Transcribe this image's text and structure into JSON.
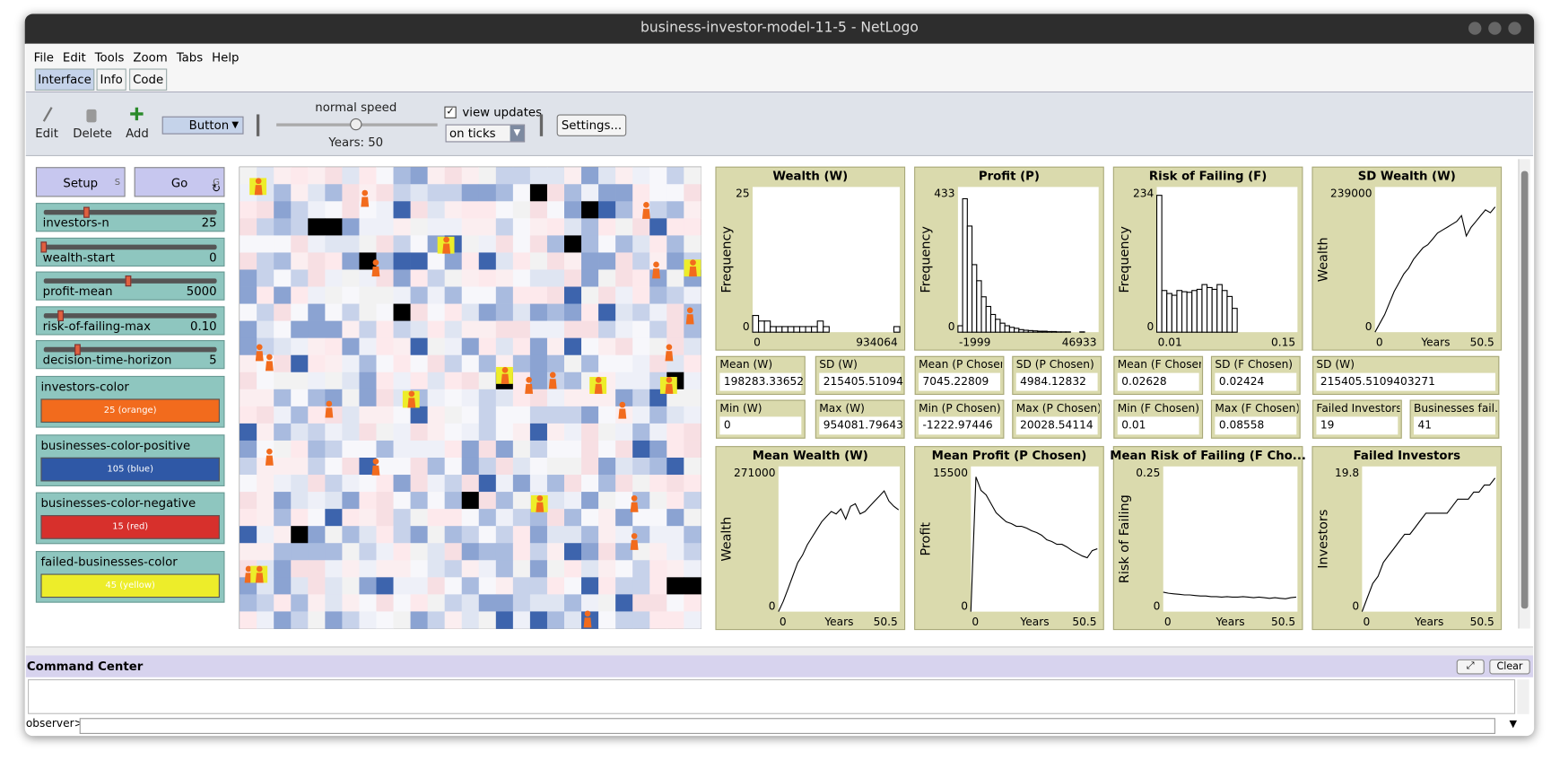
{
  "window": {
    "title": "business-investor-model-11-5 - NetLogo"
  },
  "menu": [
    "File",
    "Edit",
    "Tools",
    "Zoom",
    "Tabs",
    "Help"
  ],
  "tabs": [
    "Interface",
    "Info",
    "Code"
  ],
  "toolbar": {
    "edit": "Edit",
    "delete": "Delete",
    "add": "Add",
    "widget_type": "Button",
    "speed_label": "normal speed",
    "ticks_label": "Years: 50",
    "view_updates": "view updates",
    "update_mode": "on ticks",
    "settings": "Settings..."
  },
  "buttons": [
    {
      "label": "Setup",
      "key": "S"
    },
    {
      "label": "Go",
      "key": "G"
    }
  ],
  "sliders": [
    {
      "name": "investors-n",
      "value": "25"
    },
    {
      "name": "wealth-start",
      "value": "0"
    },
    {
      "name": "profit-mean",
      "value": "5000"
    },
    {
      "name": "risk-of-failing-max",
      "value": "0.10"
    },
    {
      "name": "decision-time-horizon",
      "value": "5"
    }
  ],
  "choosers": [
    {
      "name": "investors-color",
      "value": "25 (orange)",
      "color": "#f26b1d"
    },
    {
      "name": "businesses-color-positive",
      "value": "105 (blue)",
      "color": "#2f58a6"
    },
    {
      "name": "businesses-color-negative",
      "value": "15 (red)",
      "color": "#d7302c"
    },
    {
      "name": "failed-businesses-color",
      "value": "45 (yellow)",
      "color": "#eded2a"
    }
  ],
  "monitors": [
    {
      "label": "Mean (W)",
      "value": "198283.33652"
    },
    {
      "label": "SD (W)",
      "value": "215405.51094"
    },
    {
      "label": "Mean (P Chosen)",
      "value": "7045.22809"
    },
    {
      "label": "SD (P Chosen)",
      "value": "4984.12832"
    },
    {
      "label": "Mean (F Chosen)",
      "value": "0.02628"
    },
    {
      "label": "SD (F Chosen)",
      "value": "0.02424"
    },
    {
      "label": "SD (W)",
      "value": "215405.5109403271"
    },
    {
      "label": "Min (W)",
      "value": "0"
    },
    {
      "label": "Max (W)",
      "value": "954081.79643"
    },
    {
      "label": "Min (P Chosen)",
      "value": "-1222.97446"
    },
    {
      "label": "Max (P Chosen)",
      "value": "20028.54114"
    },
    {
      "label": "Min (F Chosen)",
      "value": "0.01"
    },
    {
      "label": "Max (F Chosen)",
      "value": "0.08558"
    },
    {
      "label": "Failed Investors",
      "value": "19"
    },
    {
      "label": "Businesses fail...",
      "value": "41"
    }
  ],
  "plots": [
    {
      "type": "histogram",
      "title": "Wealth (W)",
      "y_label": "Frequency",
      "xlim": [
        0,
        934064
      ],
      "ylim": [
        0,
        25
      ],
      "values": [
        3,
        2,
        2,
        1,
        1,
        1,
        1,
        1,
        1,
        1,
        1,
        2,
        1,
        0,
        0,
        0,
        0,
        0,
        0,
        0,
        0,
        0,
        0,
        0,
        1
      ]
    },
    {
      "type": "histogram",
      "title": "Profit (P)",
      "y_label": "Frequency",
      "xlim": [
        -1999,
        46933
      ],
      "ylim": [
        0,
        433
      ],
      "values": [
        20,
        415,
        330,
        210,
        160,
        110,
        80,
        55,
        40,
        28,
        20,
        15,
        12,
        8,
        6,
        5,
        4,
        3,
        3,
        2,
        2,
        1,
        1,
        1,
        0,
        0,
        1,
        0,
        0,
        0
      ]
    },
    {
      "type": "histogram",
      "title": "Risk of Failing (F)",
      "y_label": "Frequency",
      "xlim": [
        0.01,
        0.15
      ],
      "ylim": [
        0,
        234
      ],
      "values": [
        230,
        70,
        65,
        62,
        70,
        68,
        67,
        70,
        72,
        80,
        75,
        72,
        80,
        70,
        60,
        40,
        0,
        0,
        0,
        0,
        0,
        0,
        0,
        0,
        0,
        0,
        0,
        0
      ]
    },
    {
      "type": "line",
      "title": "SD Wealth (W)",
      "x_label": "Years",
      "y_label": "Wealth",
      "xlim": [
        0,
        50.5
      ],
      "ylim": [
        0,
        239000
      ],
      "x": [
        0,
        2,
        4,
        6,
        8,
        10,
        12,
        14,
        16,
        18,
        20,
        22,
        24,
        26,
        28,
        30,
        32,
        34,
        36,
        38,
        40,
        42,
        44,
        46,
        48,
        50
      ],
      "values": [
        0,
        15000,
        30000,
        50000,
        70000,
        85000,
        100000,
        110000,
        125000,
        135000,
        145000,
        150000,
        160000,
        170000,
        175000,
        180000,
        185000,
        190000,
        200000,
        165000,
        180000,
        190000,
        200000,
        210000,
        205000,
        215000
      ]
    },
    {
      "type": "line",
      "title": "Mean Wealth (W)",
      "x_label": "Years",
      "y_label": "Wealth",
      "xlim": [
        0,
        50.5
      ],
      "ylim": [
        0,
        271000
      ],
      "x": [
        0,
        2,
        4,
        6,
        8,
        10,
        12,
        14,
        16,
        18,
        20,
        22,
        24,
        26,
        28,
        30,
        32,
        34,
        36,
        38,
        40,
        42,
        44,
        46,
        48,
        50
      ],
      "values": [
        0,
        20000,
        45000,
        70000,
        95000,
        110000,
        130000,
        145000,
        160000,
        175000,
        185000,
        195000,
        190000,
        200000,
        180000,
        205000,
        210000,
        190000,
        195000,
        205000,
        215000,
        225000,
        235000,
        215000,
        205000,
        198000
      ]
    },
    {
      "type": "line",
      "title": "Mean Profit (P Chosen)",
      "x_label": "Years",
      "y_label": "Profit",
      "xlim": [
        0,
        50.5
      ],
      "ylim": [
        0,
        15500
      ],
      "x": [
        0,
        2,
        4,
        6,
        8,
        10,
        12,
        14,
        16,
        18,
        20,
        22,
        24,
        26,
        28,
        30,
        32,
        34,
        36,
        38,
        40,
        42,
        44,
        46,
        48,
        50
      ],
      "values": [
        0,
        15000,
        13500,
        13000,
        12000,
        11000,
        10500,
        10000,
        9800,
        9500,
        9500,
        9300,
        9000,
        8800,
        8500,
        8000,
        7800,
        7500,
        7500,
        7200,
        6800,
        6500,
        6200,
        6000,
        6800,
        7000
      ]
    },
    {
      "type": "line",
      "title": "Mean Risk of Failing (F Cho...",
      "x_label": "Years",
      "y_label": "Risk of Failing",
      "xlim": [
        0,
        50.5
      ],
      "ylim": [
        0,
        0.25
      ],
      "x": [
        0,
        2,
        4,
        6,
        8,
        10,
        12,
        14,
        16,
        18,
        20,
        22,
        24,
        26,
        28,
        30,
        32,
        34,
        36,
        38,
        40,
        42,
        44,
        46,
        48,
        50
      ],
      "values": [
        0.035,
        0.033,
        0.032,
        0.031,
        0.03,
        0.03,
        0.029,
        0.028,
        0.028,
        0.027,
        0.027,
        0.026,
        0.027,
        0.026,
        0.026,
        0.027,
        0.026,
        0.025,
        0.026,
        0.025,
        0.024,
        0.025,
        0.024,
        0.023,
        0.025,
        0.026
      ]
    },
    {
      "type": "line",
      "title": "Failed Investors",
      "x_label": "Years",
      "y_label": "Investors",
      "xlim": [
        0,
        50.5
      ],
      "ylim": [
        0,
        19.8
      ],
      "x": [
        0,
        2,
        4,
        6,
        8,
        10,
        12,
        14,
        16,
        18,
        20,
        22,
        24,
        26,
        28,
        30,
        32,
        34,
        36,
        38,
        40,
        42,
        44,
        46,
        48,
        50
      ],
      "values": [
        0,
        2,
        4,
        5,
        7,
        8,
        9,
        10,
        11,
        11,
        12,
        13,
        14,
        14,
        14,
        14,
        14,
        15,
        16,
        16,
        16,
        17,
        17,
        18,
        18,
        19
      ]
    }
  ],
  "command_center": {
    "title": "Command Center",
    "clear": "Clear",
    "prompt": "observer>"
  }
}
